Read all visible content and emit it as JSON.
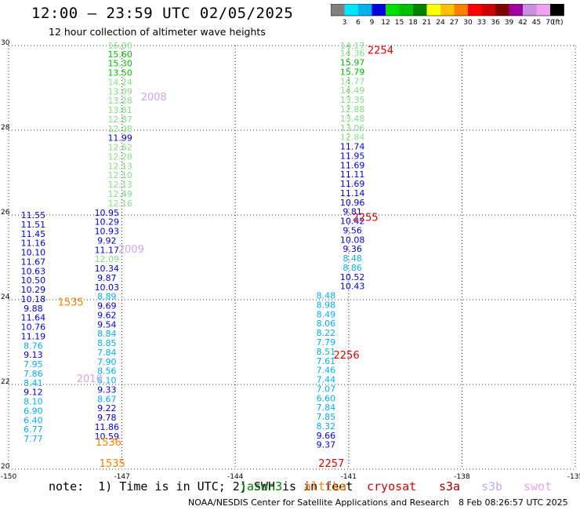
{
  "header": {
    "title": "12:00 – 23:59 UTC 02/05/2025",
    "subtitle": "12 hour collection of altimeter wave heights"
  },
  "colorbar": {
    "unit": "(ft)",
    "ticks": [
      "3",
      "6",
      "9",
      "12",
      "15",
      "18",
      "21",
      "24",
      "27",
      "30",
      "33",
      "36",
      "39",
      "42",
      "45",
      "70"
    ],
    "colors": [
      "#808080",
      "#00e5ff",
      "#00b0f0",
      "#0000e0",
      "#00e000",
      "#00c000",
      "#008000",
      "#ffff00",
      "#ffc000",
      "#ff8000",
      "#ff0000",
      "#d00000",
      "#800000",
      "#a000a0",
      "#c890e0",
      "#f0a0f0",
      "#000000"
    ]
  },
  "footer": {
    "note": "note:  1) Time is in UTC; 2) SWH is in feet",
    "credit": "NOAA/NESDIS Center for Satellite Applications and Research",
    "timestamp": "8 Feb 08:26:57 UTC 2025"
  },
  "satellites": [
    {
      "name": "jason3",
      "color": "#008000"
    },
    {
      "name": "altika",
      "color": "#ff8000"
    },
    {
      "name": "cryosat",
      "color": "#e00000"
    },
    {
      "name": "s3a",
      "color": "#a00000"
    },
    {
      "name": "s3b",
      "color": "#c8a8e8"
    },
    {
      "name": "swot",
      "color": "#f0a0f0"
    }
  ],
  "chart_data": {
    "type": "scatter",
    "title": "12:00 – 23:59 UTC 02/05/2025",
    "xlim": [
      -150,
      -135
    ],
    "ylim": [
      20,
      30
    ],
    "xticks": [
      "-150",
      "-147",
      "-144",
      "-141",
      "-138",
      "-135"
    ],
    "yticks": [
      "20",
      "22",
      "24",
      "26",
      "28",
      "30"
    ],
    "grid": true,
    "time_labels": [
      {
        "text": "2254",
        "x": -140.5,
        "y": 29.9,
        "color": "#e00000"
      },
      {
        "text": "2255",
        "x": -140.9,
        "y": 25.95,
        "color": "#e00000"
      },
      {
        "text": "2256",
        "x": -141.4,
        "y": 22.7,
        "color": "#e00000"
      },
      {
        "text": "2257",
        "x": -141.8,
        "y": 20.15,
        "color": "#e00000"
      },
      {
        "text": "2008",
        "x": -146.5,
        "y": 28.8,
        "color": "#c8a8e8"
      },
      {
        "text": "2009",
        "x": -147.1,
        "y": 25.2,
        "color": "#c8a8e8"
      },
      {
        "text": "2010",
        "x": -148.2,
        "y": 22.15,
        "color": "#c8a8e8"
      },
      {
        "text": "1536",
        "x": -147.7,
        "y": 20.65,
        "color": "#ff8000"
      },
      {
        "text": "1535",
        "x": -147.6,
        "y": 20.15,
        "color": "#ff8000"
      },
      {
        "text": "1535",
        "x": -148.7,
        "y": 23.95,
        "color": "#ff8000"
      }
    ],
    "series": [
      {
        "name": "",
        "x": -147.05,
        "points": [
          [
            "16.00",
            30.0,
            "#80e080"
          ],
          [
            "15.60",
            29.8,
            "#00c000"
          ],
          [
            "15.30",
            29.58,
            "#00c000"
          ],
          [
            "13.50",
            29.36,
            "#00c000"
          ],
          [
            "14.24",
            29.14,
            "#80e080"
          ],
          [
            "13.09",
            28.92,
            "#80e080"
          ],
          [
            "13.28",
            28.7,
            "#80e080"
          ],
          [
            "13.61",
            28.48,
            "#80e080"
          ],
          [
            "12.87",
            28.26,
            "#80e080"
          ],
          [
            "12.08",
            28.04,
            "#80e080"
          ],
          [
            "11.99",
            27.82,
            "#0000e0"
          ],
          [
            "12.62",
            27.6,
            "#80e080"
          ],
          [
            "12.28",
            27.38,
            "#80e080"
          ],
          [
            "12.13",
            27.16,
            "#80e080"
          ],
          [
            "12.10",
            26.94,
            "#80e080"
          ],
          [
            "12.13",
            26.72,
            "#80e080"
          ],
          [
            "12.49",
            26.5,
            "#80e080"
          ],
          [
            "12.16",
            26.28,
            "#80e080"
          ]
        ]
      },
      {
        "name": "",
        "x": -147.4,
        "points": [
          [
            "10.95",
            26.06,
            "#0000e0"
          ],
          [
            "10.29",
            25.84,
            "#0000e0"
          ],
          [
            "10.93",
            25.62,
            "#0000e0"
          ],
          [
            "9.92",
            25.4,
            "#0000e0"
          ],
          [
            "11.17",
            25.18,
            "#0000e0"
          ],
          [
            "12.09",
            24.96,
            "#80e080"
          ],
          [
            "10.34",
            24.74,
            "#0000e0"
          ],
          [
            "9.87",
            24.52,
            "#0000e0"
          ],
          [
            "10.03",
            24.3,
            "#0000e0"
          ],
          [
            "8.89",
            24.08,
            "#00b0f0"
          ],
          [
            "9.69",
            23.86,
            "#0000e0"
          ],
          [
            "9.62",
            23.64,
            "#0000e0"
          ],
          [
            "9.54",
            23.42,
            "#0000e0"
          ],
          [
            "8.84",
            23.2,
            "#00b0f0"
          ],
          [
            "8.85",
            22.98,
            "#00b0f0"
          ],
          [
            "7.84",
            22.76,
            "#00b0f0"
          ],
          [
            "7.90",
            22.54,
            "#00b0f0"
          ],
          [
            "8.56",
            22.32,
            "#00b0f0"
          ],
          [
            "8.10",
            22.1,
            "#00b0f0"
          ],
          [
            "9.33",
            21.88,
            "#0000e0"
          ],
          [
            "8.67",
            21.66,
            "#00b0f0"
          ],
          [
            "9.22",
            21.44,
            "#0000e0"
          ],
          [
            "9.78",
            21.22,
            "#0000e0"
          ],
          [
            "11.86",
            21.0,
            "#0000e0"
          ],
          [
            "10.59",
            20.78,
            "#0000e0"
          ]
        ]
      },
      {
        "name": "",
        "x": -149.35,
        "points": [
          [
            "11.55",
            26.0,
            "#0000e0"
          ],
          [
            "11.51",
            25.78,
            "#0000e0"
          ],
          [
            "11.45",
            25.56,
            "#0000e0"
          ],
          [
            "11.16",
            25.34,
            "#0000e0"
          ],
          [
            "10.10",
            25.12,
            "#0000e0"
          ],
          [
            "11.67",
            24.9,
            "#0000e0"
          ],
          [
            "10.63",
            24.68,
            "#0000e0"
          ],
          [
            "10.50",
            24.46,
            "#0000e0"
          ],
          [
            "10.29",
            24.24,
            "#0000e0"
          ],
          [
            "10.18",
            24.02,
            "#0000e0"
          ],
          [
            "9.88",
            23.8,
            "#0000e0"
          ],
          [
            "11.64",
            23.58,
            "#0000e0"
          ],
          [
            "10.76",
            23.36,
            "#0000e0"
          ],
          [
            "11.19",
            23.14,
            "#0000e0"
          ],
          [
            "8.76",
            22.92,
            "#00b0f0"
          ],
          [
            "9.13",
            22.7,
            "#0000e0"
          ],
          [
            "7.95",
            22.48,
            "#00b0f0"
          ],
          [
            "7.86",
            22.26,
            "#00b0f0"
          ],
          [
            "8.41",
            22.04,
            "#00b0f0"
          ],
          [
            "9.12",
            21.82,
            "#0000e0"
          ],
          [
            "8.10",
            21.6,
            "#00b0f0"
          ],
          [
            "6.90",
            21.38,
            "#00b0f0"
          ],
          [
            "6.40",
            21.16,
            "#00b0f0"
          ],
          [
            "6.77",
            20.94,
            "#00b0f0"
          ],
          [
            "7.77",
            20.72,
            "#00b0f0"
          ]
        ]
      },
      {
        "name": "",
        "x": -140.9,
        "points": [
          [
            "14.17",
            30.0,
            "#80e080"
          ],
          [
            "14.36",
            29.82,
            "#80e080"
          ],
          [
            "15.97",
            29.6,
            "#00c000"
          ],
          [
            "15.79",
            29.38,
            "#00c000"
          ],
          [
            "14.77",
            29.16,
            "#80e080"
          ],
          [
            "14.49",
            28.94,
            "#80e080"
          ],
          [
            "13.35",
            28.72,
            "#80e080"
          ],
          [
            "12.88",
            28.5,
            "#80e080"
          ],
          [
            "13.48",
            28.28,
            "#80e080"
          ],
          [
            "13.06",
            28.06,
            "#80e080"
          ],
          [
            "12.84",
            27.84,
            "#80e080"
          ],
          [
            "11.74",
            27.62,
            "#0000e0"
          ],
          [
            "11.95",
            27.4,
            "#0000e0"
          ],
          [
            "11.69",
            27.18,
            "#0000e0"
          ],
          [
            "11.11",
            26.96,
            "#0000e0"
          ],
          [
            "11.69",
            26.74,
            "#0000e0"
          ],
          [
            "11.14",
            26.52,
            "#0000e0"
          ],
          [
            "10.96",
            26.3,
            "#0000e0"
          ],
          [
            "9.81",
            26.08,
            "#0000e0"
          ],
          [
            "10.42",
            25.86,
            "#0000e0"
          ],
          [
            "9.56",
            25.64,
            "#0000e0"
          ],
          [
            "10.08",
            25.42,
            "#0000e0"
          ],
          [
            "9.36",
            25.2,
            "#0000e0"
          ],
          [
            "8.48",
            24.98,
            "#00b0f0"
          ],
          [
            "8.86",
            24.76,
            "#00b0f0"
          ],
          [
            "10.52",
            24.54,
            "#0000e0"
          ],
          [
            "10.43",
            24.32,
            "#0000e0"
          ]
        ]
      },
      {
        "name": "",
        "x": -141.6,
        "points": [
          [
            "8.48",
            24.1,
            "#00b0f0"
          ],
          [
            "8.98",
            23.88,
            "#00b0f0"
          ],
          [
            "8.49",
            23.66,
            "#00b0f0"
          ],
          [
            "8.06",
            23.44,
            "#00b0f0"
          ],
          [
            "8.22",
            23.22,
            "#00b0f0"
          ],
          [
            "7.79",
            23.0,
            "#00b0f0"
          ],
          [
            "8.51",
            22.78,
            "#00b0f0"
          ],
          [
            "7.61",
            22.56,
            "#00b0f0"
          ],
          [
            "7.46",
            22.34,
            "#00b0f0"
          ],
          [
            "7.44",
            22.12,
            "#00b0f0"
          ],
          [
            "7.07",
            21.9,
            "#00b0f0"
          ],
          [
            "6.60",
            21.68,
            "#00b0f0"
          ],
          [
            "7.84",
            21.46,
            "#00b0f0"
          ],
          [
            "7.85",
            21.24,
            "#00b0f0"
          ],
          [
            "8.32",
            21.02,
            "#00b0f0"
          ],
          [
            "9.66",
            20.8,
            "#0000e0"
          ],
          [
            "9.37",
            20.58,
            "#0000e0"
          ]
        ]
      }
    ]
  }
}
